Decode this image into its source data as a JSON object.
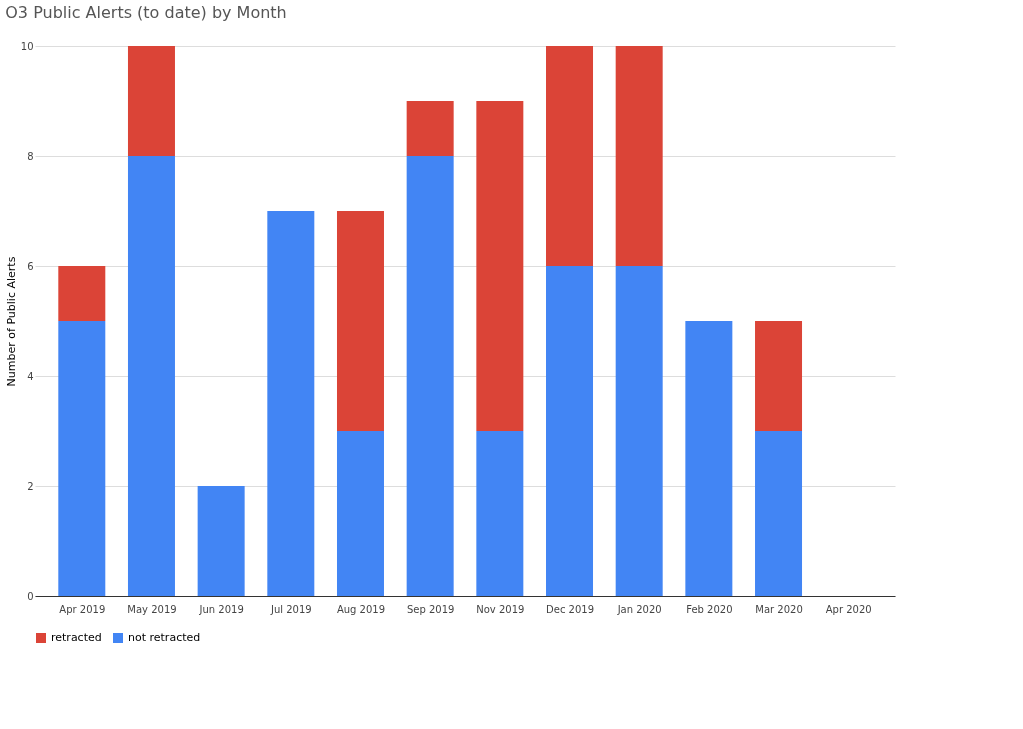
{
  "chart_data": {
    "type": "bar",
    "title": "O3 Public Alerts (to date) by Month",
    "ylabel": "Number of Public Alerts",
    "categories": [
      "Apr 2019",
      "May 2019",
      "Jun 2019",
      "Jul 2019",
      "Aug 2019",
      "Sep 2019",
      "Nov 2019",
      "Dec 2019",
      "Jan 2020",
      "Feb 2020",
      "Mar 2020",
      "Apr 2020"
    ],
    "stacked": true,
    "series": [
      {
        "name": "not retracted",
        "color": "#4285f4",
        "values": [
          5,
          8,
          2,
          7,
          3,
          8,
          3,
          6,
          6,
          5,
          3,
          0
        ]
      },
      {
        "name": "retracted",
        "color": "#db4437",
        "values": [
          1,
          2,
          0,
          0,
          4,
          1,
          6,
          4,
          4,
          0,
          2,
          0
        ]
      }
    ],
    "ylim": [
      0,
      10
    ],
    "yticks": [
      0,
      2,
      4,
      6,
      8,
      10
    ],
    "grid": "y",
    "legend": "bottom"
  }
}
